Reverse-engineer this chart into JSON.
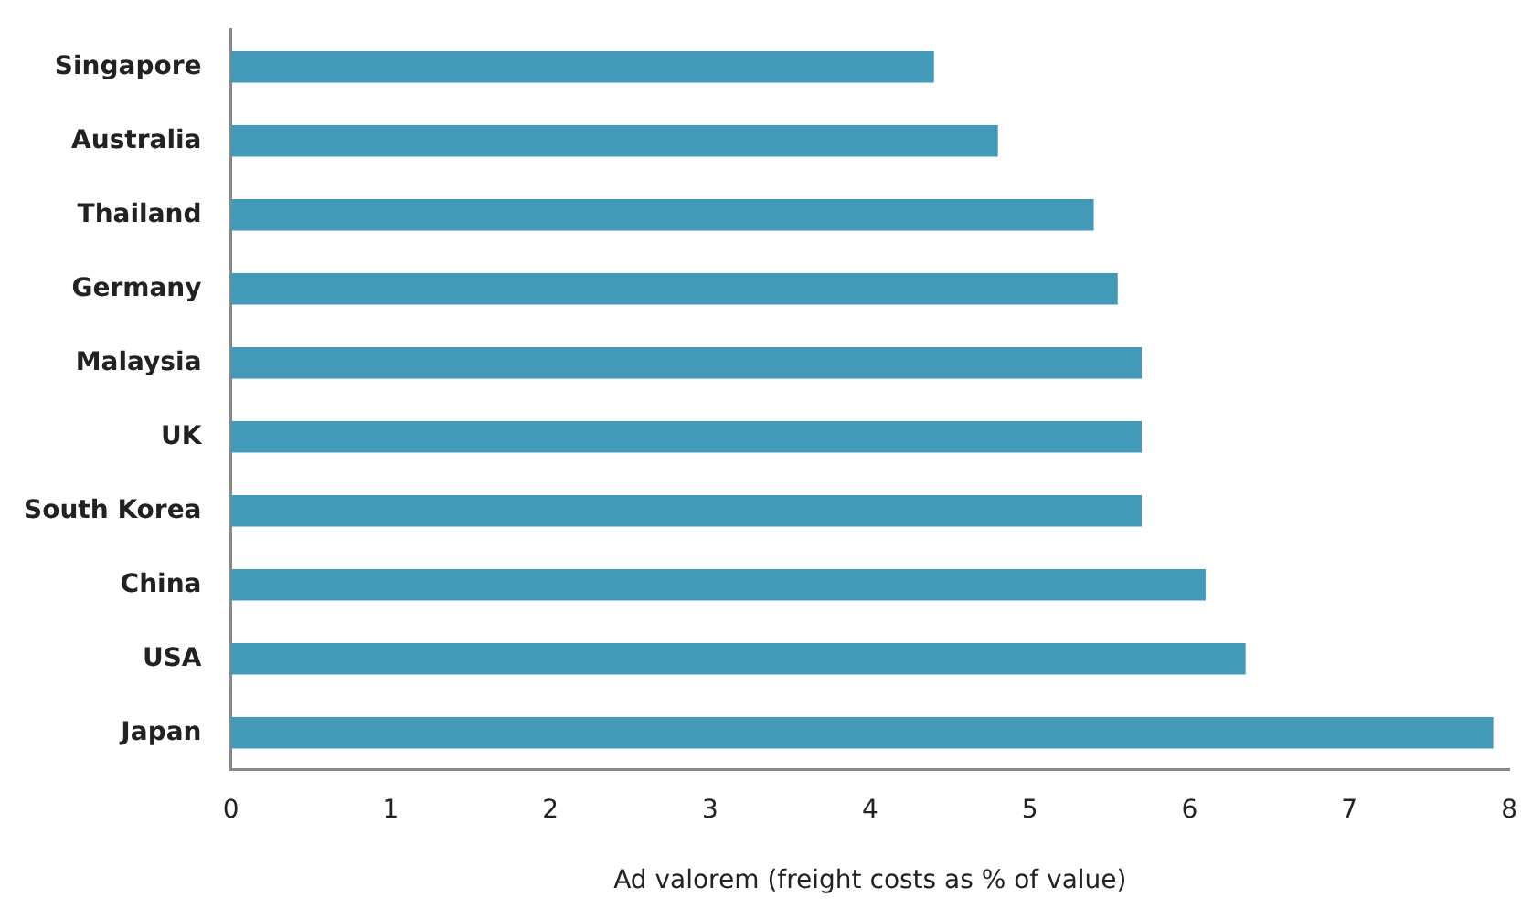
{
  "chart_data": {
    "type": "bar",
    "orientation": "horizontal",
    "xlabel": "Ad valorem (freight costs as % of value)",
    "categories": [
      "Singapore",
      "Australia",
      "Thailand",
      "Germany",
      "Malaysia",
      "UK",
      "South Korea",
      "China",
      "USA",
      "Japan"
    ],
    "values": [
      4.4,
      4.8,
      5.4,
      5.55,
      5.7,
      5.7,
      5.7,
      6.1,
      6.35,
      7.9
    ],
    "color": "#4299b8",
    "xlim": [
      0,
      8
    ],
    "xticks": [
      0,
      1,
      2,
      3,
      4,
      5,
      6,
      7,
      8
    ],
    "grid": false,
    "legend": false
  }
}
